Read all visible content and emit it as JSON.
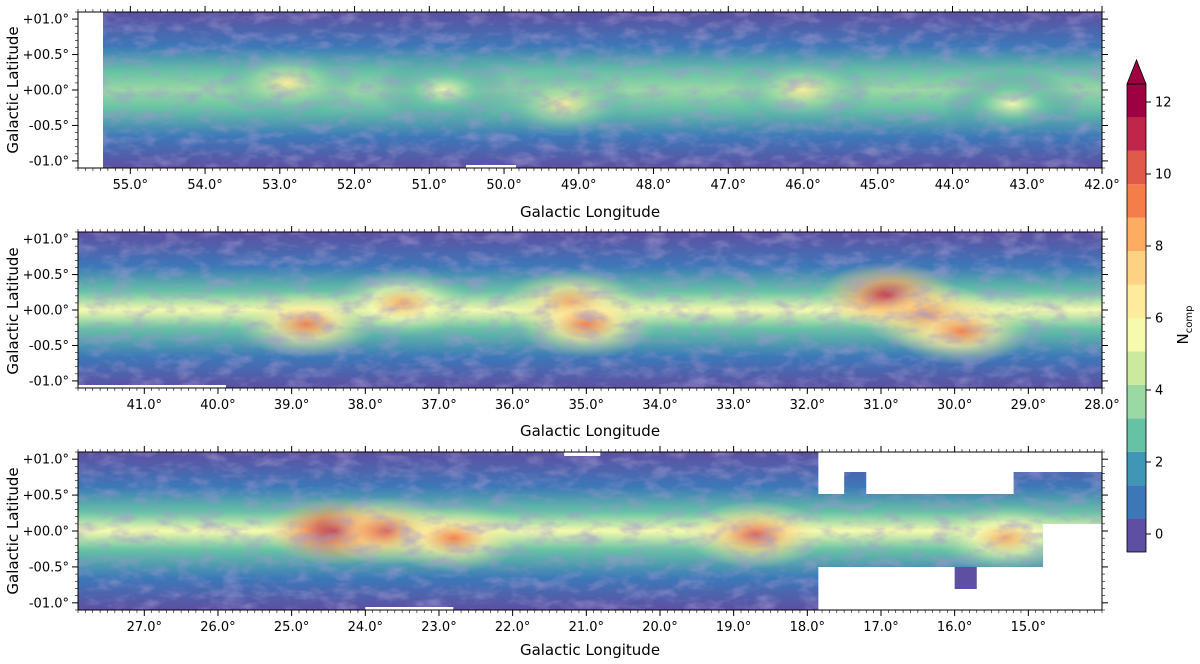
{
  "chart_data": {
    "type": "heatmap",
    "description_free": true,
    "panels": [
      {
        "xlabel": "Galactic Longitude",
        "ylabel": "Galactic Latitude",
        "xlim": [
          55.7,
          42.0
        ],
        "ylim": [
          -1.1,
          1.1
        ],
        "xticks": [
          55.0,
          54.0,
          53.0,
          52.0,
          51.0,
          50.0,
          49.0,
          48.0,
          47.0,
          46.0,
          45.0,
          44.0,
          43.0,
          42.0
        ],
        "xtick_labels": [
          "55.0°",
          "54.0°",
          "53.0°",
          "52.0°",
          "51.0°",
          "50.0°",
          "49.0°",
          "48.0°",
          "47.0°",
          "46.0°",
          "45.0°",
          "44.0°",
          "43.0°",
          "42.0°"
        ],
        "yticks": [
          1.0,
          0.5,
          0.0,
          -0.5,
          -1.0
        ],
        "ytick_labels": [
          "+01.0°",
          "+00.5°",
          "+00.0°",
          "-00.5°",
          "-01.0°"
        ],
        "hotspots": [
          {
            "l": 52.9,
            "b": 0.1,
            "level": 6
          },
          {
            "l": 50.8,
            "b": 0.0,
            "level": 5
          },
          {
            "l": 49.2,
            "b": -0.2,
            "level": 6
          },
          {
            "l": 46.0,
            "b": 0.0,
            "level": 6
          },
          {
            "l": 43.2,
            "b": -0.2,
            "level": 5
          }
        ]
      },
      {
        "xlabel": "Galactic Longitude",
        "ylabel": "Galactic Latitude",
        "xlim": [
          41.9,
          28.0
        ],
        "ylim": [
          -1.1,
          1.1
        ],
        "xticks": [
          41.0,
          40.0,
          39.0,
          38.0,
          37.0,
          36.0,
          35.0,
          34.0,
          33.0,
          32.0,
          31.0,
          30.0,
          29.0,
          28.0
        ],
        "xtick_labels": [
          "41.0°",
          "40.0°",
          "39.0°",
          "38.0°",
          "37.0°",
          "36.0°",
          "35.0°",
          "34.0°",
          "33.0°",
          "32.0°",
          "31.0°",
          "30.0°",
          "29.0°",
          "28.0°"
        ],
        "yticks": [
          1.0,
          0.5,
          0.0,
          -0.5,
          -1.0
        ],
        "ytick_labels": [
          "+01.0°",
          "+00.5°",
          "+00.0°",
          "-00.5°",
          "-01.0°"
        ],
        "hotspots": [
          {
            "l": 38.8,
            "b": -0.2,
            "level": 9
          },
          {
            "l": 37.5,
            "b": 0.1,
            "level": 8
          },
          {
            "l": 35.2,
            "b": 0.1,
            "level": 9
          },
          {
            "l": 35.0,
            "b": -0.2,
            "level": 9
          },
          {
            "l": 30.9,
            "b": 0.2,
            "level": 11
          },
          {
            "l": 30.3,
            "b": -0.1,
            "level": 10
          },
          {
            "l": 29.9,
            "b": -0.3,
            "level": 9
          }
        ]
      },
      {
        "xlabel": "Galactic Longitude",
        "ylabel": "Galactic Latitude",
        "xlim": [
          27.9,
          14.0
        ],
        "ylim": [
          -1.1,
          1.1
        ],
        "xticks": [
          27.0,
          26.0,
          25.0,
          24.0,
          23.0,
          22.0,
          21.0,
          20.0,
          19.0,
          18.0,
          17.0,
          16.0,
          15.0
        ],
        "xtick_labels": [
          "27.0°",
          "26.0°",
          "25.0°",
          "24.0°",
          "23.0°",
          "22.0°",
          "21.0°",
          "20.0°",
          "19.0°",
          "18.0°",
          "17.0°",
          "16.0°",
          "15.0°"
        ],
        "yticks": [
          1.0,
          0.5,
          0.0,
          -0.5,
          -1.0
        ],
        "ytick_labels": [
          "+01.0°",
          "+00.5°",
          "+00.0°",
          "-00.5°",
          "-01.0°"
        ],
        "hotspots": [
          {
            "l": 24.4,
            "b": 0.0,
            "level": 12
          },
          {
            "l": 23.7,
            "b": 0.0,
            "level": 10
          },
          {
            "l": 22.8,
            "b": -0.1,
            "level": 9
          },
          {
            "l": 18.7,
            "b": -0.05,
            "level": 10
          },
          {
            "l": 15.3,
            "b": -0.1,
            "level": 8
          }
        ]
      }
    ],
    "colorbar": {
      "label_main": "N",
      "label_sub": "comp",
      "vmin": -0.5,
      "vmax": 12.5,
      "extend": "max",
      "ticks": [
        0,
        2,
        4,
        6,
        8,
        10,
        12
      ],
      "tick_labels": [
        "0",
        "2",
        "4",
        "6",
        "8",
        "10",
        "12"
      ],
      "colors": [
        "#5e4fa2",
        "#3c78b8",
        "#3f96b7",
        "#66c2a5",
        "#9ad8a4",
        "#cbea9e",
        "#f6faae",
        "#feeb9c",
        "#fed283",
        "#fdac61",
        "#f57d4a",
        "#e05a4a",
        "#c0264a",
        "#9e0142"
      ],
      "extend_color": "#9e0142"
    }
  }
}
